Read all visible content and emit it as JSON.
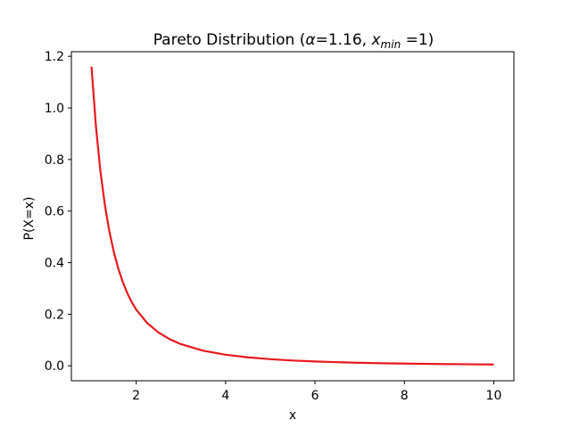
{
  "chart_data": {
    "type": "line",
    "title": {
      "prefix": "Pareto Distribution (",
      "alpha_symbol": "α",
      "alpha_text": "=1.16, ",
      "xmin_var": "x",
      "xmin_sub": "min",
      "xmin_text": " =1)"
    },
    "xlabel": "x",
    "ylabel": "P(X=x)",
    "xlim": [
      0.55,
      10.45
    ],
    "ylim": [
      -0.058,
      1.218
    ],
    "xticks": [
      2,
      4,
      6,
      8,
      10
    ],
    "yticks": [
      0.0,
      0.2,
      0.4,
      0.6,
      0.8,
      1.0,
      1.2
    ],
    "grid": false,
    "series": [
      {
        "color": "#e8191d",
        "x": [
          1.0,
          1.1,
          1.2,
          1.3,
          1.4,
          1.5,
          1.6,
          1.7,
          1.8,
          1.9,
          2.0,
          2.25,
          2.5,
          2.75,
          3.0,
          3.5,
          4.0,
          4.5,
          5.0,
          5.5,
          6.0,
          6.5,
          7.0,
          7.5,
          8.0,
          8.5,
          9.0,
          9.5,
          10.0
        ],
        "y": [
          1.16,
          0.927,
          0.754,
          0.623,
          0.521,
          0.441,
          0.377,
          0.325,
          0.282,
          0.247,
          0.218,
          0.165,
          0.129,
          0.103,
          0.0839,
          0.0586,
          0.043,
          0.0327,
          0.0256,
          0.0205,
          0.0168,
          0.0139,
          0.0117,
          0.00999,
          0.00859,
          0.00746,
          0.00653,
          0.00576,
          0.00511
        ]
      }
    ]
  }
}
